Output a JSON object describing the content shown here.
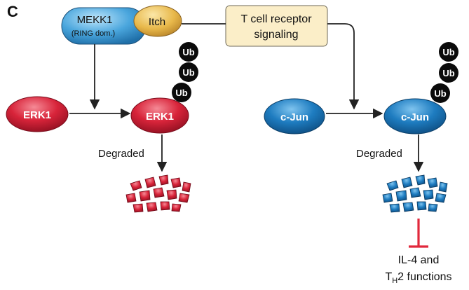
{
  "panel_label": "C",
  "mekk1": {
    "name": "MEKK1",
    "domain": "(RING dom.)"
  },
  "itch": {
    "name": "Itch"
  },
  "tcr": {
    "line1": "T cell receptor",
    "line2": "signaling"
  },
  "erk1_left": {
    "name": "ERK1"
  },
  "erk1_right": {
    "name": "ERK1"
  },
  "cjun_left": {
    "name": "c-Jun"
  },
  "cjun_right": {
    "name": "c-Jun"
  },
  "ub_label": "Ub",
  "degraded_left": "Degraded",
  "degraded_right": "Degraded",
  "outcome": {
    "line1": "IL-4 and",
    "th_main": "T",
    "th_sub": "H",
    "line2_rest": "2 functions"
  },
  "colors": {
    "mekk1_blue": "#4aa6dd",
    "itch_yellow": "#e8b84a",
    "tcr_fill": "#fbeec8",
    "erk1_red": "#d8243a",
    "cjun_blue": "#1e7cc0",
    "ub_black": "#0b0b0b",
    "inhibit_red": "#e1283c",
    "arrow": "#222222"
  }
}
